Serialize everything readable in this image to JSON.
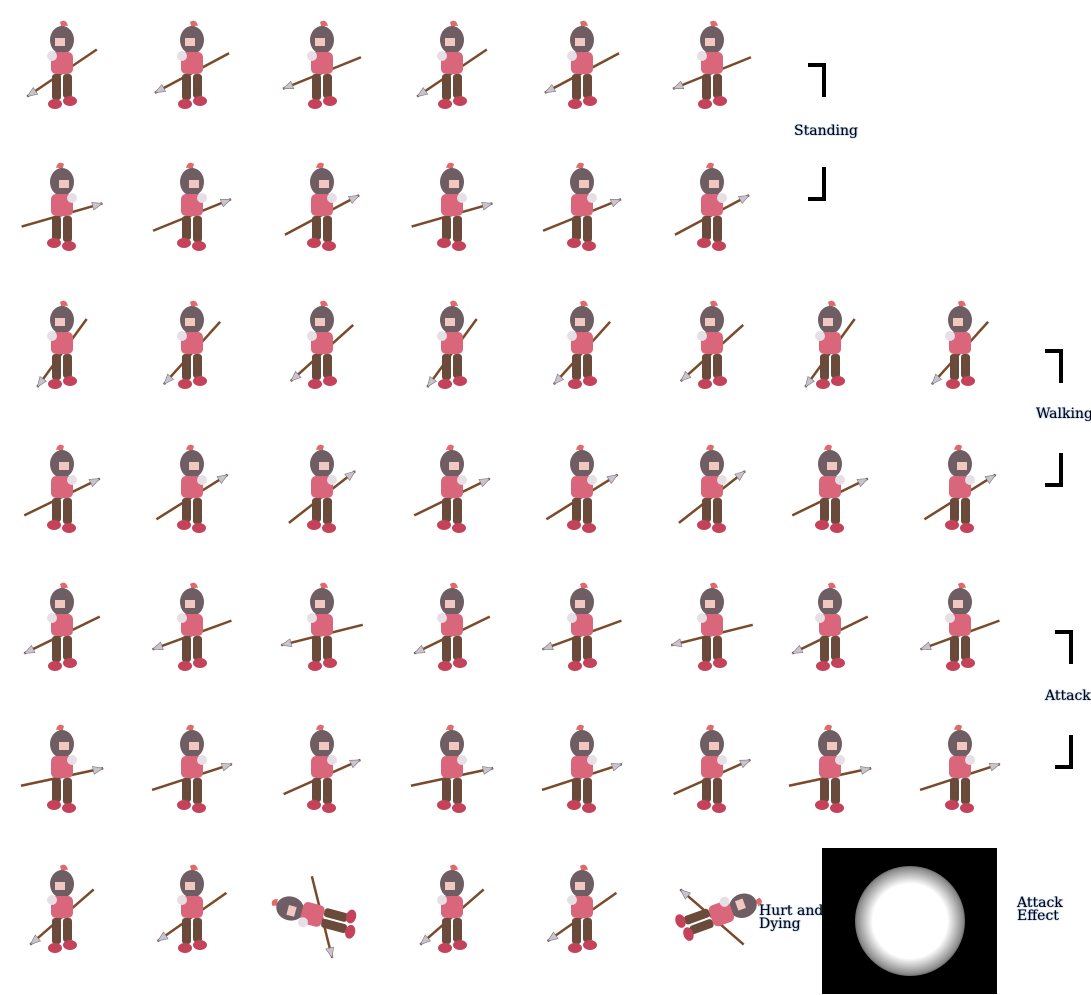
{
  "labels": {
    "standing": "Standing",
    "walking": "Walking",
    "attack": "Attack",
    "hurt_line1": "Hurt and",
    "hurt_line2": "Dying",
    "effect_line1": "Attack",
    "effect_line2": "Effect"
  },
  "colors": {
    "background": "#ffffff",
    "helmet": "#6e5d63",
    "plume": "#e06a6a",
    "shirt": "#d9667a",
    "pants": "#6a4a3a",
    "boots": "#c4435a",
    "spear_shaft": "#7a4a2a",
    "spear_tip": "#c9c4cc",
    "effect_bg": "#000000",
    "effect_glow": "#ffffff"
  },
  "sprite_sheet": {
    "animations": [
      "Standing",
      "Walking",
      "Attack",
      "Hurt and Dying",
      "Attack Effect"
    ],
    "frames_per_row": [
      6,
      6,
      8,
      8,
      8,
      8,
      6
    ]
  }
}
